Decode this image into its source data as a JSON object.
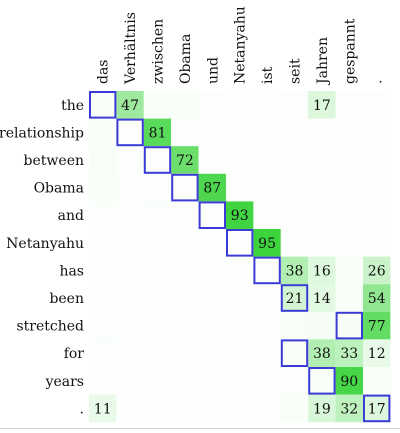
{
  "target_words": [
    "das",
    "Verhältnis",
    "zwischen",
    "Obama",
    "und",
    "Netanyahu",
    "ist",
    "seit",
    "Jahren",
    "gespannt",
    "."
  ],
  "source_words": [
    "the",
    "relationship",
    "between",
    "Obama",
    "and",
    "Netanyahu",
    "has",
    "been",
    "stretched",
    "for",
    "years",
    "."
  ],
  "colors": {
    "cell_base": "#ffffff",
    "cell_heat": "#33d133",
    "box_outline": "#3b3bd6",
    "text": "#111111"
  },
  "attention": [
    [
      3,
      47,
      3,
      3,
      2,
      1,
      1,
      2,
      17,
      2,
      2
    ],
    [
      3,
      2,
      81,
      2,
      2,
      1,
      1,
      1,
      2,
      2,
      2
    ],
    [
      4,
      2,
      2,
      72,
      2,
      1,
      1,
      2,
      2,
      2,
      2
    ],
    [
      3,
      2,
      2,
      2,
      87,
      2,
      1,
      1,
      1,
      1,
      1
    ],
    [
      2,
      1,
      2,
      2,
      1,
      93,
      1,
      1,
      1,
      1,
      1
    ],
    [
      2,
      1,
      1,
      1,
      1,
      1,
      95,
      1,
      1,
      1,
      1
    ],
    [
      2,
      1,
      1,
      1,
      1,
      1,
      2,
      38,
      16,
      3,
      26
    ],
    [
      2,
      1,
      1,
      1,
      1,
      1,
      1,
      21,
      14,
      3,
      54
    ],
    [
      2,
      1,
      1,
      1,
      1,
      1,
      1,
      4,
      5,
      5,
      77
    ],
    [
      2,
      1,
      1,
      1,
      1,
      1,
      1,
      3,
      38,
      33,
      12
    ],
    [
      2,
      1,
      1,
      1,
      1,
      1,
      1,
      2,
      4,
      90,
      3
    ],
    [
      11,
      1,
      1,
      1,
      1,
      1,
      1,
      3,
      19,
      32,
      17
    ]
  ],
  "labeled_cells": [
    {
      "row": 0,
      "col": 1,
      "value": "47"
    },
    {
      "row": 0,
      "col": 8,
      "value": "17"
    },
    {
      "row": 1,
      "col": 2,
      "value": "81"
    },
    {
      "row": 2,
      "col": 3,
      "value": "72"
    },
    {
      "row": 3,
      "col": 4,
      "value": "87"
    },
    {
      "row": 4,
      "col": 5,
      "value": "93"
    },
    {
      "row": 5,
      "col": 6,
      "value": "95"
    },
    {
      "row": 6,
      "col": 7,
      "value": "38"
    },
    {
      "row": 6,
      "col": 8,
      "value": "16"
    },
    {
      "row": 6,
      "col": 10,
      "value": "26"
    },
    {
      "row": 7,
      "col": 7,
      "value": "21"
    },
    {
      "row": 7,
      "col": 8,
      "value": "14"
    },
    {
      "row": 7,
      "col": 10,
      "value": "54"
    },
    {
      "row": 8,
      "col": 10,
      "value": "77"
    },
    {
      "row": 9,
      "col": 8,
      "value": "38"
    },
    {
      "row": 9,
      "col": 9,
      "value": "33"
    },
    {
      "row": 9,
      "col": 10,
      "value": "12"
    },
    {
      "row": 10,
      "col": 9,
      "value": "90"
    },
    {
      "row": 11,
      "col": 0,
      "value": "11"
    },
    {
      "row": 11,
      "col": 8,
      "value": "19"
    },
    {
      "row": 11,
      "col": 9,
      "value": "32"
    },
    {
      "row": 11,
      "col": 10,
      "value": "17"
    }
  ],
  "boxed_cells": [
    {
      "row": 0,
      "col": 0
    },
    {
      "row": 1,
      "col": 1
    },
    {
      "row": 2,
      "col": 2
    },
    {
      "row": 3,
      "col": 3
    },
    {
      "row": 4,
      "col": 4
    },
    {
      "row": 5,
      "col": 5
    },
    {
      "row": 6,
      "col": 6
    },
    {
      "row": 7,
      "col": 7
    },
    {
      "row": 8,
      "col": 9
    },
    {
      "row": 9,
      "col": 7
    },
    {
      "row": 10,
      "col": 8
    },
    {
      "row": 11,
      "col": 10
    }
  ]
}
